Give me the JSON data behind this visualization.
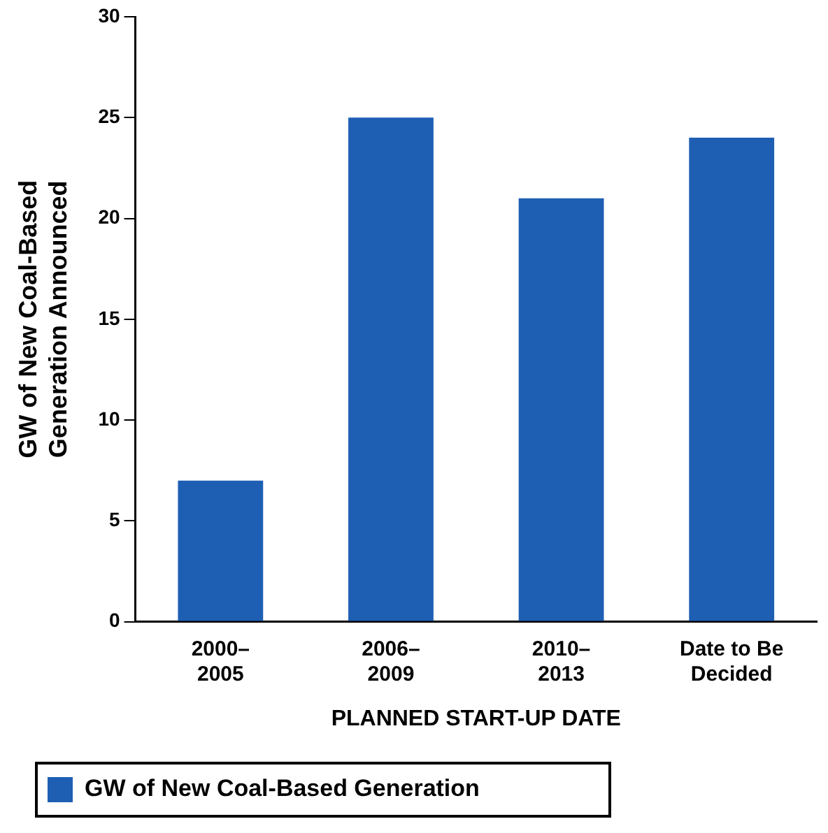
{
  "chart_data": {
    "type": "bar",
    "xlabel": "PLANNED START-UP DATE",
    "ylabel": "GW of New Coal-Based Generation Announced",
    "categories": [
      "2000–2005",
      "2006–2009",
      "2010–2013",
      "Date to Be Decided"
    ],
    "series": [
      {
        "name": "GW of New Coal-Based Generation",
        "color": "#1e5fb4",
        "values": [
          7,
          25,
          21,
          24
        ]
      }
    ],
    "ylim": [
      0,
      30
    ],
    "yticks": [
      0,
      5,
      10,
      15,
      20,
      25,
      30
    ],
    "grid": false,
    "legend": "bottom left"
  }
}
